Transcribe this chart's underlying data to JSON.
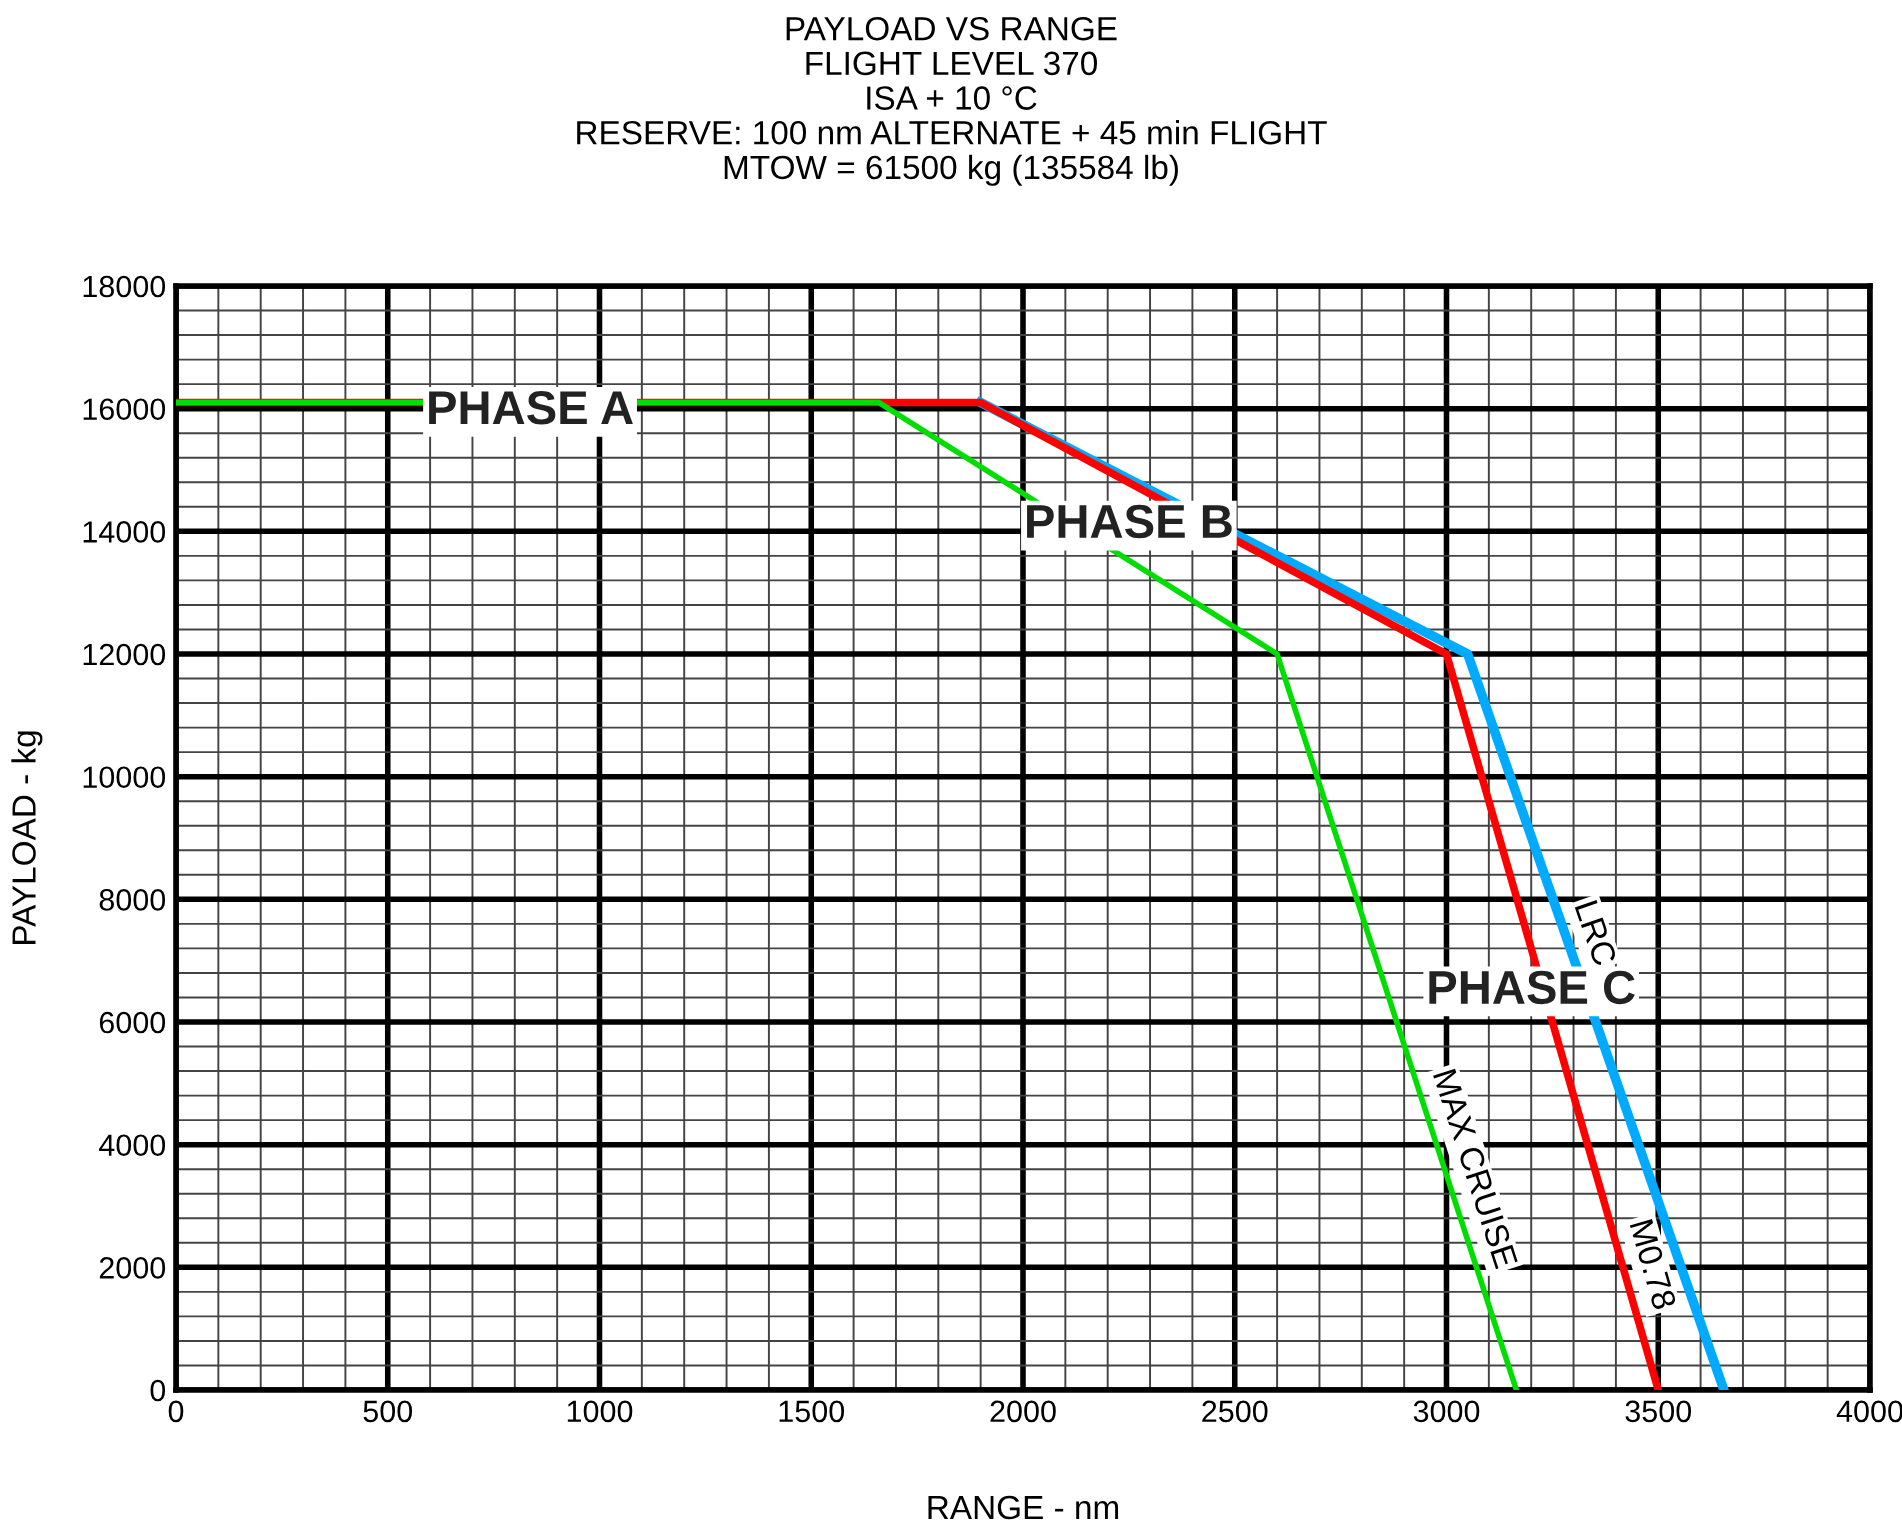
{
  "chart_data": {
    "type": "line",
    "title": "PAYLOAD VS RANGE",
    "subtitle": "FLIGHT LEVEL 370\nISA + 10 °C\nRESERVE: 100 nm ALTERNATE + 45 min FLIGHT\nMTOW = 61500 kg (135584 lb)",
    "xlabel": "RANGE - nm",
    "ylabel": "PAYLOAD - kg",
    "series": [
      {
        "name": "MAX CRUISE",
        "color": "#00dd00",
        "x": [
          0,
          1660,
          2600,
          3165
        ],
        "values": [
          16100,
          16100,
          12000,
          0
        ]
      },
      {
        "name": "M0.78",
        "color": "#ff0000",
        "x": [
          0,
          1900,
          3000,
          3500
        ],
        "values": [
          16100,
          16100,
          12000,
          0
        ]
      },
      {
        "name": "LRC",
        "color": "#00aaff",
        "x": [
          1900,
          3050,
          3655
        ],
        "values": [
          16100,
          12000,
          0
        ]
      }
    ],
    "annotations": [
      "PHASE A",
      "PHASE B",
      "PHASE C"
    ],
    "xlim": [
      0,
      4000
    ],
    "xticks": [
      0,
      500,
      1000,
      1500,
      2000,
      2500,
      3000,
      3500,
      4000
    ],
    "ylim": [
      0,
      18000
    ],
    "yticks": [
      0,
      2000,
      4000,
      6000,
      8000,
      10000,
      12000,
      14000,
      16000,
      18000
    ],
    "grid": true,
    "legend": false,
    "marker": "none",
    "line_style": "solid"
  }
}
